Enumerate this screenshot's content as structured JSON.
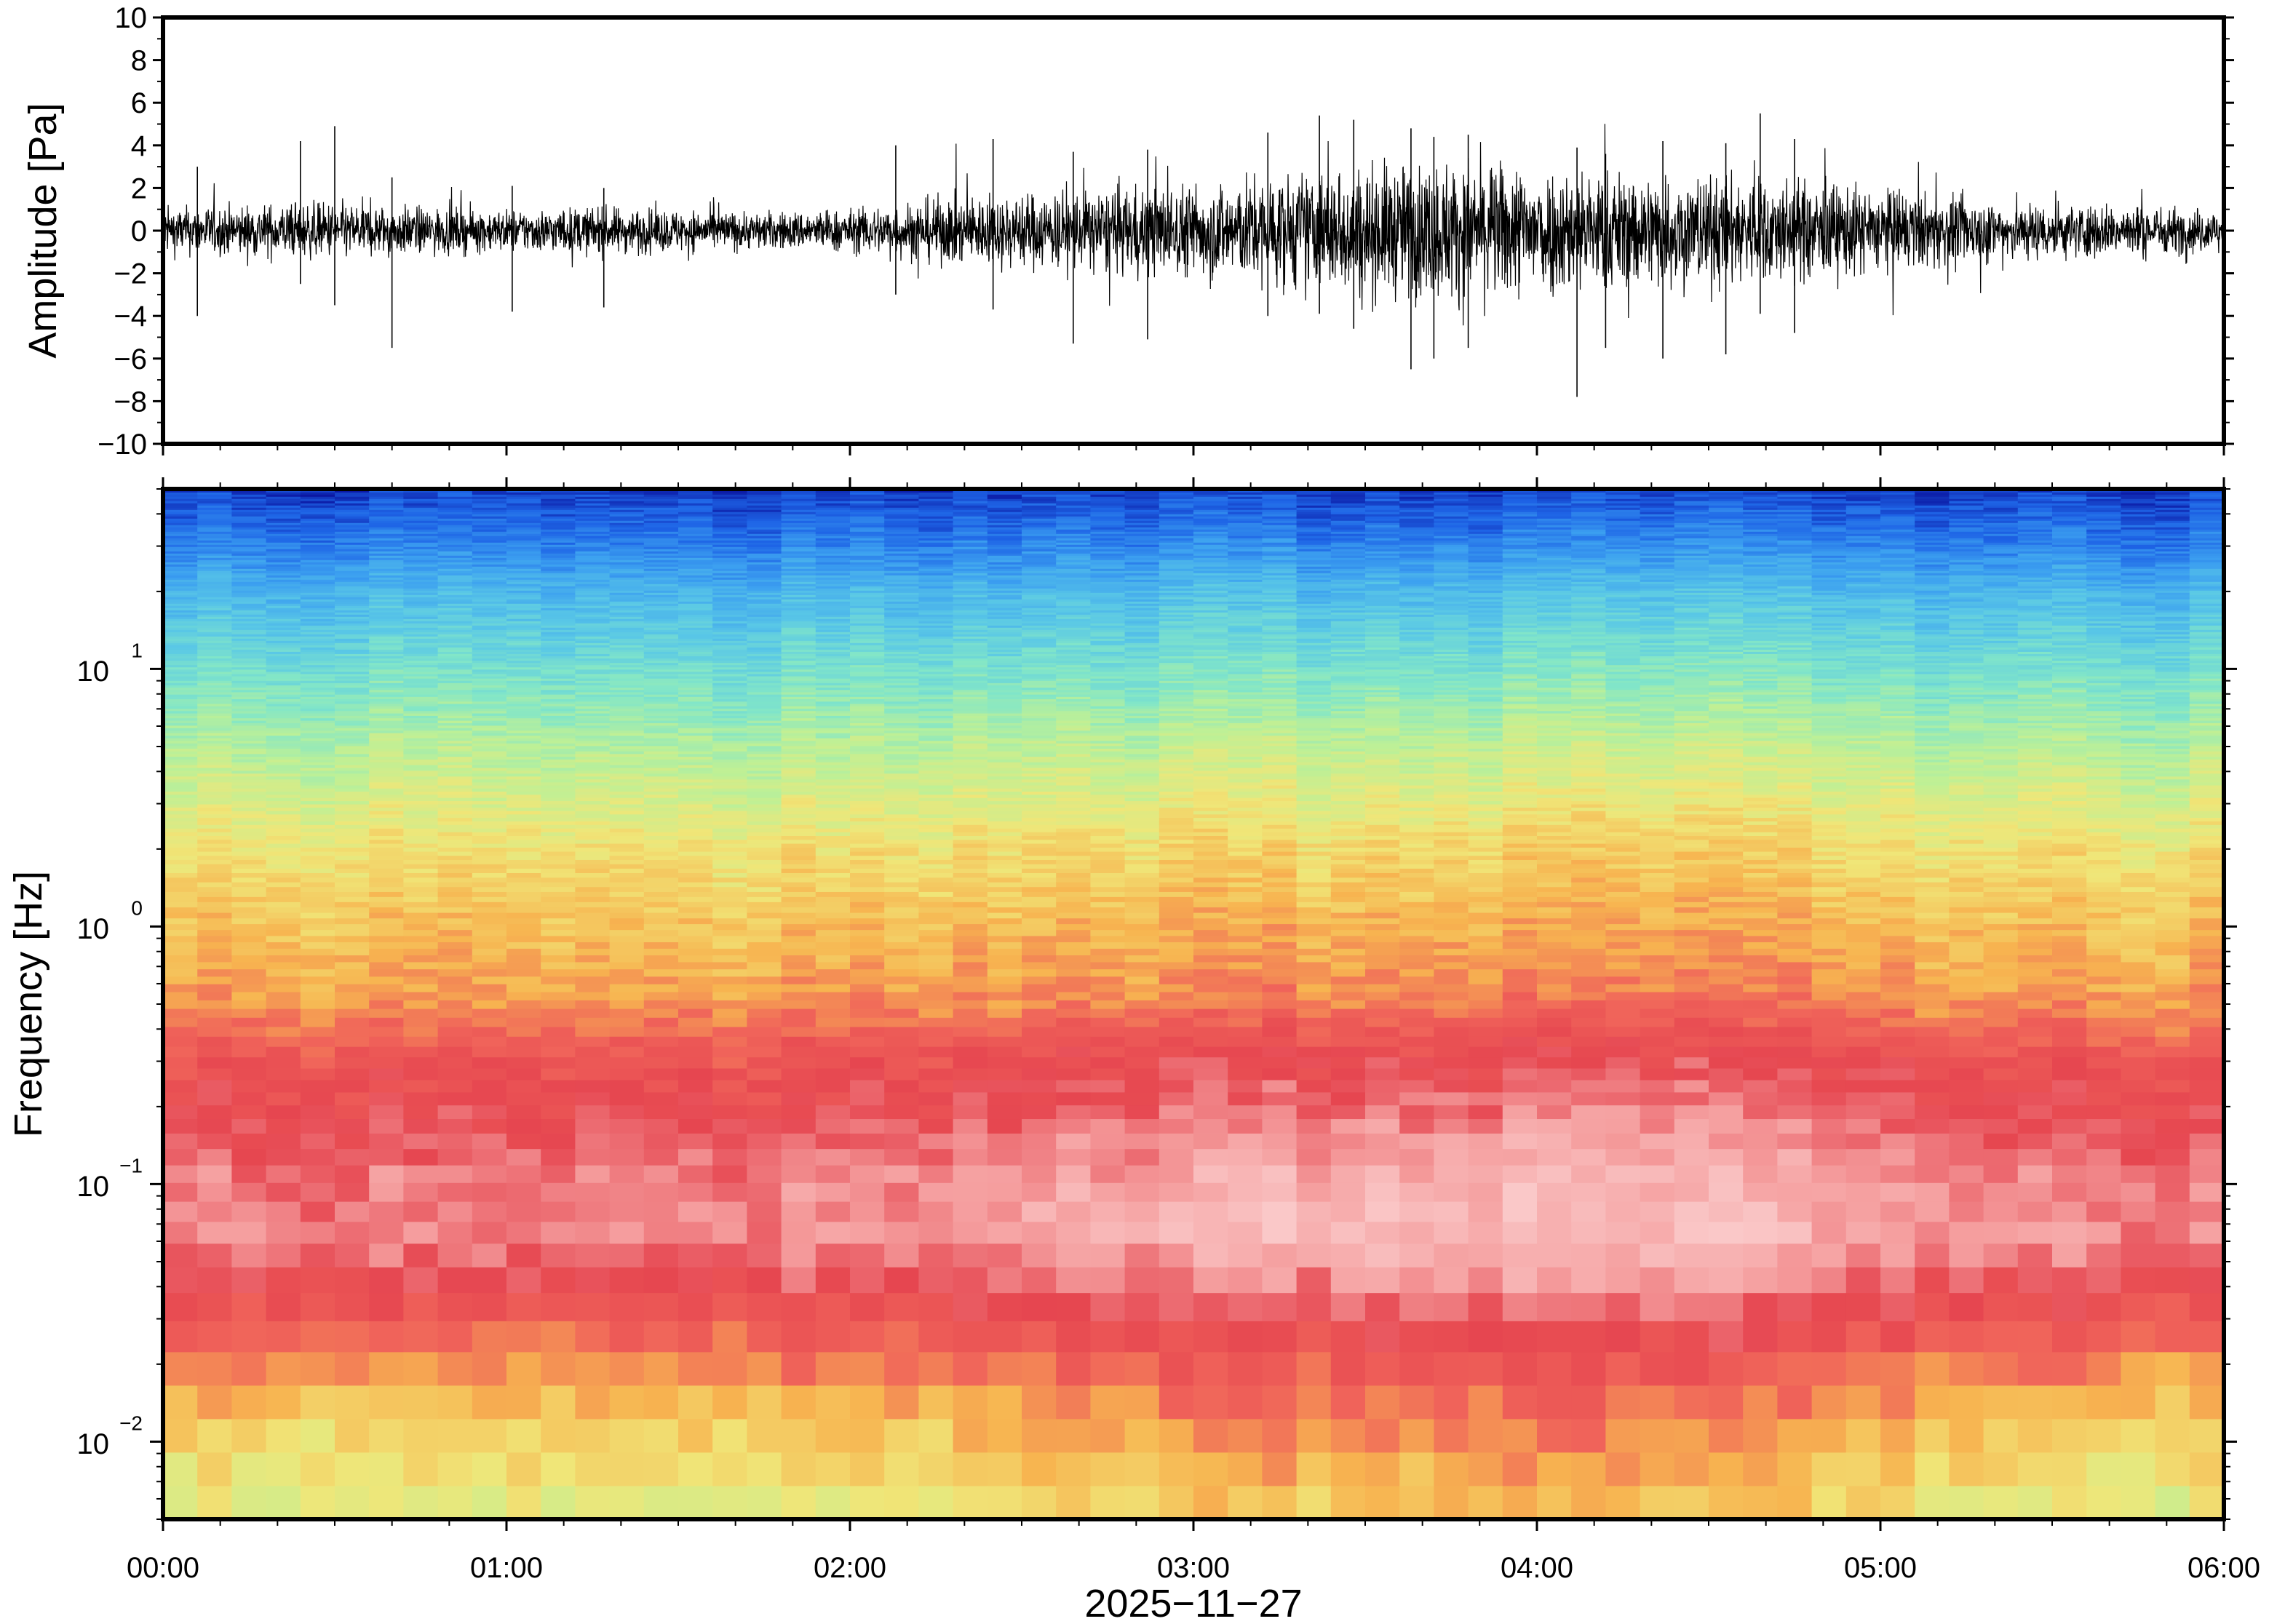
{
  "chart_data": [
    {
      "type": "line",
      "panel": "waveform",
      "ylabel": "Amplitude [Pa]",
      "ylim": [
        -10,
        10
      ],
      "yticks": [
        -10,
        -8,
        -6,
        -4,
        -2,
        0,
        2,
        4,
        6,
        8,
        10
      ],
      "ytick_labels": [
        "−10",
        "−8",
        "−6",
        "−4",
        "−2",
        "0",
        "2",
        "4",
        "6",
        "8",
        "10"
      ],
      "xlim": [
        "00:00",
        "06:00"
      ],
      "grid": false,
      "envelope": {
        "time": [
          "00:00",
          "00:15",
          "00:30",
          "00:45",
          "01:00",
          "01:15",
          "01:30",
          "01:45",
          "02:00",
          "02:15",
          "02:30",
          "02:45",
          "03:00",
          "03:15",
          "03:30",
          "03:45",
          "04:00",
          "04:15",
          "04:30",
          "04:45",
          "05:00",
          "05:15",
          "05:30",
          "05:45",
          "06:00"
        ],
        "typical_abs_amplitude": [
          1.0,
          1.1,
          1.2,
          1.0,
          0.9,
          1.0,
          0.9,
          0.8,
          0.9,
          1.4,
          1.6,
          1.8,
          2.0,
          2.4,
          2.8,
          3.0,
          2.8,
          2.5,
          2.4,
          2.2,
          1.8,
          1.4,
          1.2,
          1.1,
          0.9
        ]
      },
      "spikes": [
        {
          "time": "00:06",
          "max": 3.0,
          "min": -4.0
        },
        {
          "time": "00:24",
          "max": 4.2,
          "min": -2.5
        },
        {
          "time": "00:30",
          "max": 4.9,
          "min": -3.5
        },
        {
          "time": "00:40",
          "max": 2.5,
          "min": -5.5
        },
        {
          "time": "01:01",
          "max": 2.1,
          "min": -3.8
        },
        {
          "time": "01:17",
          "max": 2.0,
          "min": -3.6
        },
        {
          "time": "02:08",
          "max": 4.0,
          "min": -3.0
        },
        {
          "time": "02:25",
          "max": 4.3,
          "min": -3.7
        },
        {
          "time": "02:39",
          "max": 3.7,
          "min": -5.3
        },
        {
          "time": "02:52",
          "max": 3.8,
          "min": -5.1
        },
        {
          "time": "03:13",
          "max": 4.6,
          "min": -4.0
        },
        {
          "time": "03:22",
          "max": 5.4,
          "min": -3.9
        },
        {
          "time": "03:28",
          "max": 5.2,
          "min": -4.6
        },
        {
          "time": "03:38",
          "max": 4.8,
          "min": -6.5
        },
        {
          "time": "03:42",
          "max": 4.4,
          "min": -6.0
        },
        {
          "time": "03:48",
          "max": 4.5,
          "min": -5.5
        },
        {
          "time": "04:07",
          "max": 3.9,
          "min": -7.8
        },
        {
          "time": "04:12",
          "max": 3.6,
          "min": -5.5
        },
        {
          "time": "04:22",
          "max": 4.2,
          "min": -6.0
        },
        {
          "time": "04:33",
          "max": 4.1,
          "min": -5.8
        },
        {
          "time": "04:39",
          "max": 5.5,
          "min": -3.9
        },
        {
          "time": "04:45",
          "max": 4.3,
          "min": -4.8
        }
      ]
    },
    {
      "type": "heatmap",
      "panel": "spectrogram",
      "ylabel": "Frequency [Hz]",
      "yscale": "log",
      "ylim": [
        0.005,
        50
      ],
      "yticks": [
        {
          "base": "10",
          "exp": "1"
        },
        {
          "base": "10",
          "exp": "0"
        },
        {
          "base": "10",
          "exp": "−1"
        },
        {
          "base": "10",
          "exp": "−2"
        }
      ],
      "xlabel": "2025−11−27",
      "xticks": [
        "00:00",
        "01:00",
        "02:00",
        "03:00",
        "04:00",
        "05:00",
        "06:00"
      ],
      "xlim": [
        "00:00",
        "06:00"
      ],
      "colormap": [
        "#0a14a0",
        "#1e64e6",
        "#3ca0f0",
        "#5ac8e6",
        "#82e6c8",
        "#bef096",
        "#f0e678",
        "#f7b450",
        "#f0645a",
        "#e64650",
        "#f5a0a0",
        "#fac8c8"
      ],
      "time_columns": 60,
      "intensity_profile": {
        "frequency_hz": [
          50,
          30,
          20,
          10,
          5,
          2,
          1,
          0.5,
          0.3,
          0.2,
          0.1,
          0.06,
          0.04,
          0.02,
          0.01,
          0.005
        ],
        "level_quiet": [
          0.04,
          0.13,
          0.22,
          0.33,
          0.43,
          0.54,
          0.6,
          0.65,
          0.75,
          0.78,
          0.84,
          0.86,
          0.8,
          0.68,
          0.55,
          0.5
        ],
        "level_active": [
          0.05,
          0.15,
          0.25,
          0.36,
          0.47,
          0.58,
          0.64,
          0.7,
          0.82,
          0.87,
          0.95,
          0.98,
          0.92,
          0.8,
          0.7,
          0.62
        ]
      },
      "activity_by_hour": [
        {
          "time": "00:00",
          "activity": 0.25
        },
        {
          "time": "01:00",
          "activity": 0.2
        },
        {
          "time": "02:00",
          "activity": 0.35
        },
        {
          "time": "02:30",
          "activity": 0.6
        },
        {
          "time": "03:00",
          "activity": 0.75
        },
        {
          "time": "03:45",
          "activity": 1.0
        },
        {
          "time": "04:30",
          "activity": 0.85
        },
        {
          "time": "05:00",
          "activity": 0.55
        },
        {
          "time": "05:30",
          "activity": 0.3
        },
        {
          "time": "06:00",
          "activity": 0.25
        }
      ]
    }
  ]
}
